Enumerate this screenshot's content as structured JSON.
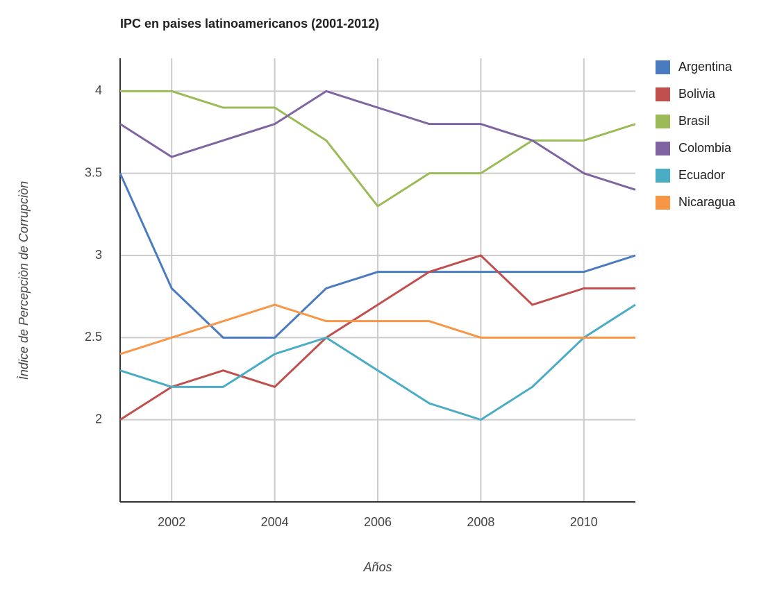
{
  "chart_data": {
    "type": "line",
    "title": "IPC en paises latinoamericanos (2001-2012)",
    "x_label": "Años",
    "y_label": "Ìndice de Percepciòn de Corrupciòn",
    "x": [
      2001,
      2002,
      2003,
      2004,
      2005,
      2006,
      2007,
      2008,
      2009,
      2010,
      2011
    ],
    "series": [
      {
        "name": "Argentina",
        "color": "#4a7bc0",
        "values": [
          3.5,
          2.8,
          2.5,
          2.5,
          2.8,
          2.9,
          2.9,
          2.9,
          2.9,
          2.9,
          3.0
        ]
      },
      {
        "name": "Bolivia",
        "color": "#c0504d",
        "values": [
          2.0,
          2.2,
          2.3,
          2.2,
          2.5,
          2.7,
          2.9,
          3.0,
          2.7,
          2.8,
          2.8
        ]
      },
      {
        "name": "Brasil",
        "color": "#9bbb59",
        "values": [
          4.0,
          4.0,
          3.9,
          3.9,
          3.7,
          3.3,
          3.5,
          3.5,
          3.7,
          3.7,
          3.8
        ]
      },
      {
        "name": "Colombia",
        "color": "#8064a2",
        "values": [
          3.8,
          3.6,
          3.7,
          3.8,
          4.0,
          3.9,
          3.8,
          3.8,
          3.7,
          3.5,
          3.4
        ]
      },
      {
        "name": "Ecuador",
        "color": "#4bacc6",
        "values": [
          2.3,
          2.2,
          2.2,
          2.4,
          2.5,
          2.3,
          2.1,
          2.0,
          2.2,
          2.5,
          2.7
        ]
      },
      {
        "name": "Nicaragua",
        "color": "#f79646",
        "values": [
          2.4,
          2.5,
          2.6,
          2.7,
          2.6,
          2.6,
          2.6,
          2.5,
          2.5,
          2.5,
          2.5
        ]
      }
    ],
    "xlim": [
      2001,
      2011
    ],
    "xticks": [
      2002,
      2004,
      2006,
      2008,
      2010
    ],
    "ylim": [
      1.5,
      4.2
    ],
    "yticks": [
      2,
      2.5,
      3,
      3.5,
      4
    ],
    "grid": true,
    "legend": "right"
  }
}
